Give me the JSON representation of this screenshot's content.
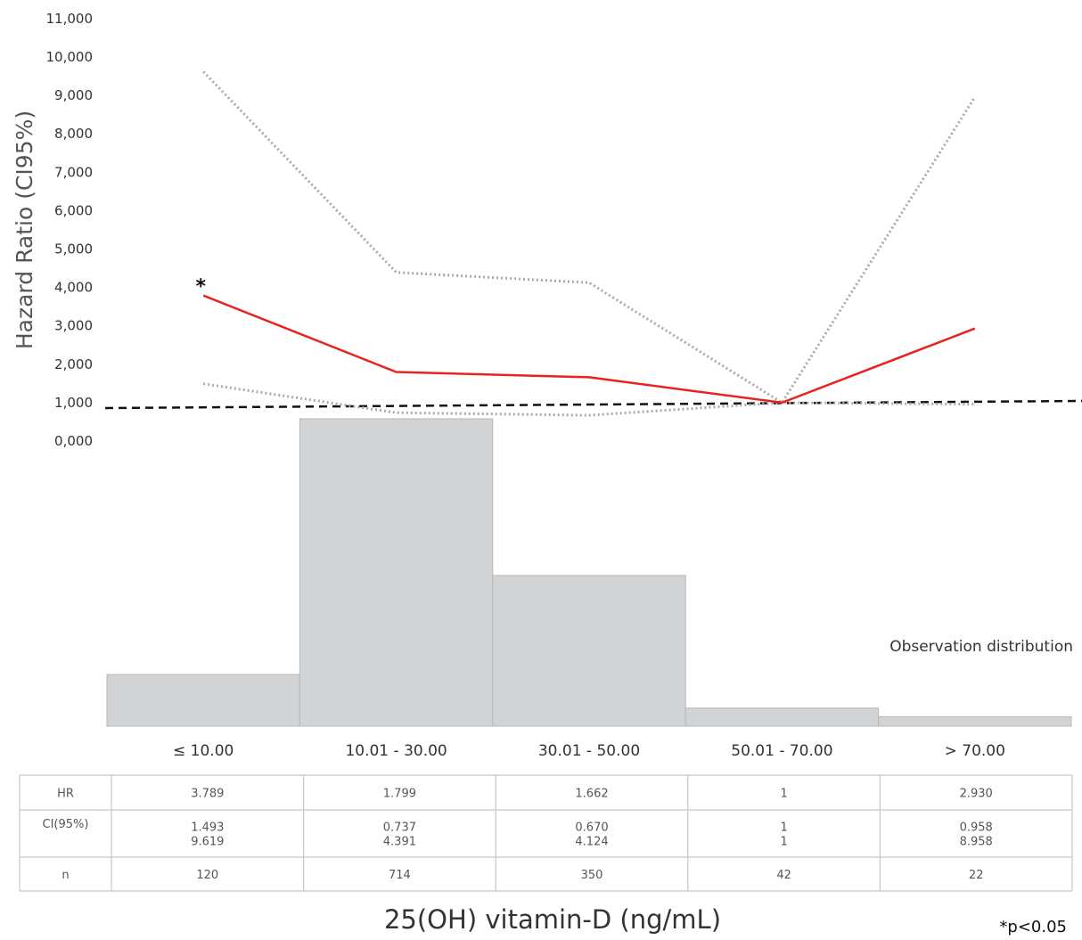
{
  "chart_data": {
    "type": "line",
    "ylabel": "Hazard Ratio (CI95%)",
    "xlabel": "25(OH) vitamin-D (ng/mL)",
    "yticks": [
      "0,000",
      "1,000",
      "2,000",
      "3,000",
      "4,000",
      "5,000",
      "6,000",
      "7,000",
      "8,000",
      "9,000",
      "10,000",
      "11,000"
    ],
    "ylim": [
      0,
      11
    ],
    "categories": [
      "≤ 10.00",
      "10.01 - 30.00",
      "30.01 - 50.00",
      "50.01 - 70.00",
      "> 70.00"
    ],
    "series": [
      {
        "name": "HR",
        "values": [
          3.789,
          1.799,
          1.662,
          1,
          2.93
        ],
        "color": "#e8231f",
        "style": "solid"
      },
      {
        "name": "CI(95%) upper",
        "values": [
          9.619,
          4.391,
          4.124,
          1,
          8.958
        ],
        "color": "#aaaaaa",
        "style": "dotted"
      },
      {
        "name": "CI(95%) lower",
        "values": [
          1.493,
          0.737,
          0.67,
          1,
          0.958
        ],
        "color": "#aaaaaa",
        "style": "dotted"
      }
    ],
    "reference_line": {
      "y": 1,
      "color": "#111111",
      "style": "dashed"
    },
    "significance_marker": {
      "symbol": "*",
      "category_index": 0
    },
    "distribution": {
      "label": "Observation distribution",
      "counts": [
        120,
        714,
        350,
        42,
        22
      ],
      "color": "#d1d3d4"
    },
    "table": {
      "row_labels": [
        "HR",
        "CI(95%)",
        "n"
      ],
      "rows": [
        [
          [
            "3.789"
          ],
          [
            "1.799"
          ],
          [
            "1.662"
          ],
          [
            "1"
          ],
          [
            "2.930"
          ]
        ],
        [
          [
            "1.493",
            "9.619"
          ],
          [
            "0.737",
            "4.391"
          ],
          [
            "0.670",
            "4.124"
          ],
          [
            "1",
            "1"
          ],
          [
            "0.958",
            "8.958"
          ]
        ],
        [
          [
            "120"
          ],
          [
            "714"
          ],
          [
            "350"
          ],
          [
            "42"
          ],
          [
            "22"
          ]
        ]
      ]
    },
    "footnote": "*p<0.05",
    "grid": false,
    "legend": "none"
  }
}
